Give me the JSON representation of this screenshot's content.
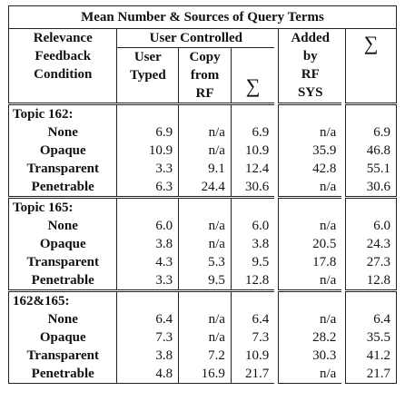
{
  "title": "Mean Number & Sources of Query Terms",
  "headers": {
    "condition": [
      "Relevance",
      "Feedback",
      "Condition"
    ],
    "user_controlled": "User Controlled",
    "user_typed": [
      "User",
      "Typed"
    ],
    "copy_from_rf": [
      "Copy",
      "from",
      "RF"
    ],
    "sum1": "∑",
    "added_by_rf_sys": [
      "Added",
      "by",
      "RF",
      "SYS"
    ],
    "sum2": "∑"
  },
  "sections": [
    {
      "label": "Topic 162:",
      "rows": [
        {
          "condition": "None",
          "user_typed": "6.9",
          "copy_from_rf": "n/a",
          "sum_user": "6.9",
          "added_by_rf": "n/a",
          "sum_total": "6.9"
        },
        {
          "condition": "Opaque",
          "user_typed": "10.9",
          "copy_from_rf": "n/a",
          "sum_user": "10.9",
          "added_by_rf": "35.9",
          "sum_total": "46.8"
        },
        {
          "condition": "Transparent",
          "user_typed": "3.3",
          "copy_from_rf": "9.1",
          "sum_user": "12.4",
          "added_by_rf": "42.8",
          "sum_total": "55.1"
        },
        {
          "condition": "Penetrable",
          "user_typed": "6.3",
          "copy_from_rf": "24.4",
          "sum_user": "30.6",
          "added_by_rf": "n/a",
          "sum_total": "30.6"
        }
      ]
    },
    {
      "label": "Topic 165:",
      "rows": [
        {
          "condition": "None",
          "user_typed": "6.0",
          "copy_from_rf": "n/a",
          "sum_user": "6.0",
          "added_by_rf": "n/a",
          "sum_total": "6.0"
        },
        {
          "condition": "Opaque",
          "user_typed": "3.8",
          "copy_from_rf": "n/a",
          "sum_user": "3.8",
          "added_by_rf": "20.5",
          "sum_total": "24.3"
        },
        {
          "condition": "Transparent",
          "user_typed": "4.3",
          "copy_from_rf": "5.3",
          "sum_user": "9.5",
          "added_by_rf": "17.8",
          "sum_total": "27.3"
        },
        {
          "condition": "Penetrable",
          "user_typed": "3.3",
          "copy_from_rf": "9.5",
          "sum_user": "12.8",
          "added_by_rf": "n/a",
          "sum_total": "12.8"
        }
      ]
    },
    {
      "label": "162&165:",
      "rows": [
        {
          "condition": "None",
          "user_typed": "6.4",
          "copy_from_rf": "n/a",
          "sum_user": "6.4",
          "added_by_rf": "n/a",
          "sum_total": "6.4"
        },
        {
          "condition": "Opaque",
          "user_typed": "7.3",
          "copy_from_rf": "n/a",
          "sum_user": "7.3",
          "added_by_rf": "28.2",
          "sum_total": "35.5"
        },
        {
          "condition": "Transparent",
          "user_typed": "3.8",
          "copy_from_rf": "7.2",
          "sum_user": "10.9",
          "added_by_rf": "30.3",
          "sum_total": "41.2"
        },
        {
          "condition": "Penetrable",
          "user_typed": "4.8",
          "copy_from_rf": "16.9",
          "sum_user": "21.7",
          "added_by_rf": "n/a",
          "sum_total": "21.7"
        }
      ]
    }
  ]
}
